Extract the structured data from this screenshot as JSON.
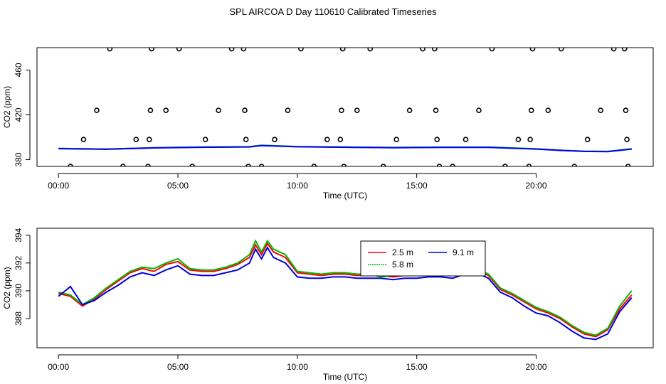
{
  "title": "SPL AIRCOA D  Day 110610  Calibrated Timeseries",
  "chart_data": [
    {
      "type": "scatter",
      "xlabel": "Time (UTC)",
      "ylabel": "CO2 (ppm)",
      "xlim": [
        -0.9,
        24.9
      ],
      "ylim": [
        374,
        480
      ],
      "x_ticks": [
        0,
        5,
        10,
        15,
        20
      ],
      "x_tick_labels": [
        "00:00",
        "05:00",
        "10:00",
        "15:00",
        "20:00"
      ],
      "y_ticks": [
        380,
        420,
        460
      ],
      "y_tick_labels": [
        "380",
        "420",
        "460"
      ],
      "grid": false,
      "points": [
        [
          0.5,
          374
        ],
        [
          1.05,
          398
        ],
        [
          1.6,
          424
        ],
        [
          2.15,
          479
        ],
        [
          2.7,
          374
        ],
        [
          3.25,
          398
        ],
        [
          3.75,
          374
        ],
        [
          3.8,
          398
        ],
        [
          3.85,
          424
        ],
        [
          3.9,
          479
        ],
        [
          4.5,
          424
        ],
        [
          5.05,
          479
        ],
        [
          5.6,
          374
        ],
        [
          6.15,
          398
        ],
        [
          6.7,
          424
        ],
        [
          7.25,
          479
        ],
        [
          7.75,
          479
        ],
        [
          7.8,
          424
        ],
        [
          7.85,
          398
        ],
        [
          7.95,
          374
        ],
        [
          8.5,
          374
        ],
        [
          9.05,
          398
        ],
        [
          9.6,
          424
        ],
        [
          10.15,
          479
        ],
        [
          10.7,
          374
        ],
        [
          11.25,
          398
        ],
        [
          11.8,
          398
        ],
        [
          11.85,
          424
        ],
        [
          11.9,
          479
        ],
        [
          11.95,
          374
        ],
        [
          12.5,
          424
        ],
        [
          13.05,
          479
        ],
        [
          13.6,
          374
        ],
        [
          14.15,
          398
        ],
        [
          14.7,
          424
        ],
        [
          15.25,
          479
        ],
        [
          15.75,
          479
        ],
        [
          15.8,
          424
        ],
        [
          15.85,
          398
        ],
        [
          15.95,
          374
        ],
        [
          16.5,
          374
        ],
        [
          17.05,
          398
        ],
        [
          17.6,
          424
        ],
        [
          18.15,
          479
        ],
        [
          18.7,
          374
        ],
        [
          19.25,
          398
        ],
        [
          19.7,
          374
        ],
        [
          19.75,
          398
        ],
        [
          19.8,
          424
        ],
        [
          19.85,
          479
        ],
        [
          20.5,
          424
        ],
        [
          21.05,
          479
        ],
        [
          21.6,
          374
        ],
        [
          22.15,
          398
        ],
        [
          22.7,
          424
        ],
        [
          23.25,
          479
        ],
        [
          23.7,
          479
        ],
        [
          23.75,
          424
        ],
        [
          23.8,
          398
        ],
        [
          23.85,
          374
        ]
      ],
      "series": [
        {
          "color": "#ff0000",
          "x": [
            0,
            2,
            4,
            6,
            8,
            8.5,
            10,
            12,
            14,
            16,
            18,
            20,
            21,
            22,
            23,
            24
          ],
          "y": [
            390,
            389.4,
            390.6,
            391.2,
            391.5,
            392.8,
            391.6,
            391.2,
            390.8,
            391.1,
            391.1,
            389.6,
            388.4,
            387.5,
            387.3,
            389.6
          ]
        },
        {
          "color": "#00cc00",
          "x": [
            0,
            2,
            4,
            6,
            8,
            8.5,
            10,
            12,
            14,
            16,
            18,
            20,
            21,
            22,
            23,
            24
          ],
          "y": [
            390,
            389.5,
            390.7,
            391.3,
            391.6,
            392.9,
            391.7,
            391.3,
            390.9,
            391.2,
            391.2,
            389.7,
            388.5,
            387.6,
            387.4,
            389.7
          ]
        },
        {
          "color": "#0000ff",
          "x": [
            0,
            2,
            4,
            6,
            8,
            8.5,
            10,
            12,
            14,
            16,
            18,
            20,
            21,
            22,
            23,
            24
          ],
          "y": [
            389.8,
            389.3,
            390.5,
            391.1,
            391.4,
            392.6,
            391.5,
            391.1,
            390.7,
            391.0,
            391.0,
            389.5,
            388.3,
            387.4,
            387.2,
            389.5
          ]
        }
      ]
    },
    {
      "type": "line",
      "xlabel": "Time (UTC)",
      "ylabel": "CO2 (ppm)",
      "xlim": [
        -0.9,
        24.9
      ],
      "ylim": [
        385.9,
        394.5
      ],
      "x_ticks": [
        0,
        5,
        10,
        15,
        20
      ],
      "x_tick_labels": [
        "00:00",
        "05:00",
        "10:00",
        "15:00",
        "20:00"
      ],
      "y_ticks": [
        388,
        390,
        392,
        394
      ],
      "y_tick_labels": [
        "388",
        "390",
        "392",
        "394"
      ],
      "grid": false,
      "legend_position": "top-center",
      "series": [
        {
          "name": "2.5 m",
          "color": "#ff0000",
          "x": [
            0,
            0.5,
            1,
            1.5,
            2,
            2.5,
            3,
            3.5,
            4,
            4.5,
            5,
            5.5,
            6,
            6.5,
            7,
            7.5,
            8,
            8.25,
            8.5,
            8.75,
            9,
            9.5,
            10,
            10.5,
            11,
            11.5,
            12,
            12.5,
            13,
            13.5,
            14,
            14.5,
            15,
            15.5,
            16,
            16.5,
            17,
            17.5,
            18,
            18.5,
            19,
            19.5,
            20,
            20.5,
            21,
            21.5,
            22,
            22.5,
            23,
            23.5,
            24
          ],
          "y": [
            389.8,
            389.6,
            388.9,
            389.4,
            390.1,
            390.7,
            391.3,
            391.6,
            391.4,
            391.9,
            392.1,
            391.5,
            391.4,
            391.4,
            391.6,
            391.9,
            392.4,
            393.3,
            392.6,
            393.4,
            392.8,
            392.4,
            391.3,
            391.2,
            391.1,
            391.2,
            391.2,
            391.1,
            391.1,
            391.1,
            391.0,
            391.1,
            391.1,
            391.1,
            391.2,
            391.1,
            391.4,
            391.5,
            391.1,
            390.1,
            389.7,
            389.2,
            388.7,
            388.4,
            388.0,
            387.4,
            386.9,
            386.7,
            387.2,
            388.7,
            389.7
          ]
        },
        {
          "name": "5.8 m",
          "color": "#00bb00",
          "x": [
            0,
            0.5,
            1,
            1.5,
            2,
            2.5,
            3,
            3.5,
            4,
            4.5,
            5,
            5.5,
            6,
            6.5,
            7,
            7.5,
            8,
            8.25,
            8.5,
            8.75,
            9,
            9.5,
            10,
            10.5,
            11,
            11.5,
            12,
            12.5,
            13,
            13.5,
            14,
            14.5,
            15,
            15.5,
            16,
            16.5,
            17,
            17.5,
            18,
            18.5,
            19,
            19.5,
            20,
            20.5,
            21,
            21.5,
            22,
            22.5,
            23,
            23.5,
            24
          ],
          "y": [
            389.9,
            389.7,
            389.0,
            389.5,
            390.2,
            390.8,
            391.4,
            391.7,
            391.6,
            392.0,
            392.3,
            391.6,
            391.5,
            391.5,
            391.7,
            392.0,
            392.6,
            393.6,
            392.8,
            393.6,
            393.0,
            392.6,
            391.4,
            391.3,
            391.2,
            391.3,
            391.3,
            391.2,
            391.2,
            391.0,
            391.1,
            391.2,
            391.2,
            391.2,
            391.3,
            391.2,
            391.5,
            391.6,
            391.2,
            390.2,
            389.8,
            389.3,
            388.8,
            388.5,
            388.1,
            387.5,
            387.0,
            386.8,
            387.3,
            388.9,
            390.0
          ]
        },
        {
          "name": "9.1 m",
          "color": "#0000dd",
          "x": [
            0,
            0.5,
            1,
            1.5,
            2,
            2.5,
            3,
            3.5,
            4,
            4.5,
            5,
            5.5,
            6,
            6.5,
            7,
            7.5,
            8,
            8.25,
            8.5,
            8.75,
            9,
            9.5,
            10,
            10.5,
            11,
            11.5,
            12,
            12.5,
            13,
            13.5,
            14,
            14.5,
            15,
            15.5,
            16,
            16.5,
            17,
            17.5,
            18,
            18.5,
            19,
            19.5,
            20,
            20.5,
            21,
            21.5,
            22,
            22.5,
            23,
            23.5,
            24
          ],
          "y": [
            389.6,
            390.3,
            389.0,
            389.3,
            389.9,
            390.4,
            391.0,
            391.3,
            391.1,
            391.5,
            391.8,
            391.2,
            391.1,
            391.1,
            391.3,
            391.5,
            392.0,
            393.0,
            392.3,
            393.1,
            392.4,
            392.0,
            391.0,
            390.9,
            390.9,
            391.0,
            391.0,
            390.9,
            390.9,
            390.9,
            390.8,
            390.9,
            390.9,
            391.0,
            391.0,
            390.9,
            391.2,
            391.3,
            390.9,
            389.9,
            389.5,
            388.9,
            388.4,
            388.2,
            387.7,
            387.1,
            386.6,
            386.5,
            386.9,
            388.5,
            389.5
          ]
        }
      ]
    }
  ]
}
